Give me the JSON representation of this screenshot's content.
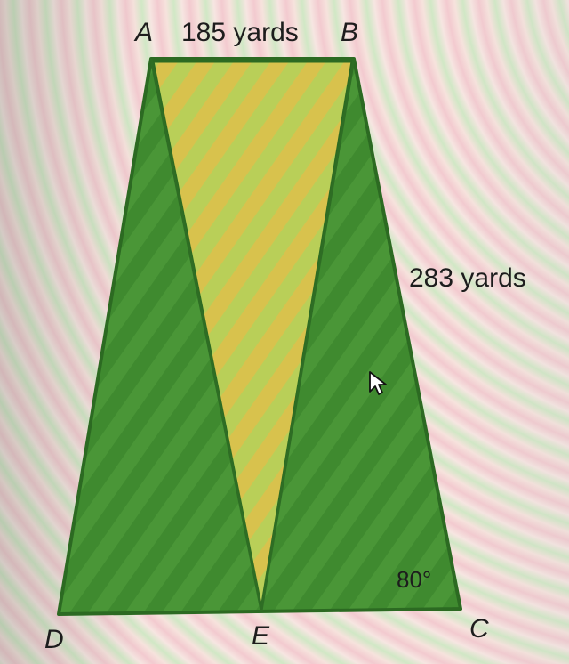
{
  "figure": {
    "points": {
      "A": "A",
      "B": "B",
      "C": "C",
      "D": "D",
      "E": "E"
    },
    "labels": {
      "top_side": "185 yards",
      "right_side": "283 yards",
      "angle_c": "80°"
    },
    "colors": {
      "dark_green": "#3f8a2f",
      "light_region": "#c9c84e",
      "outline": "#2c6a22"
    }
  }
}
